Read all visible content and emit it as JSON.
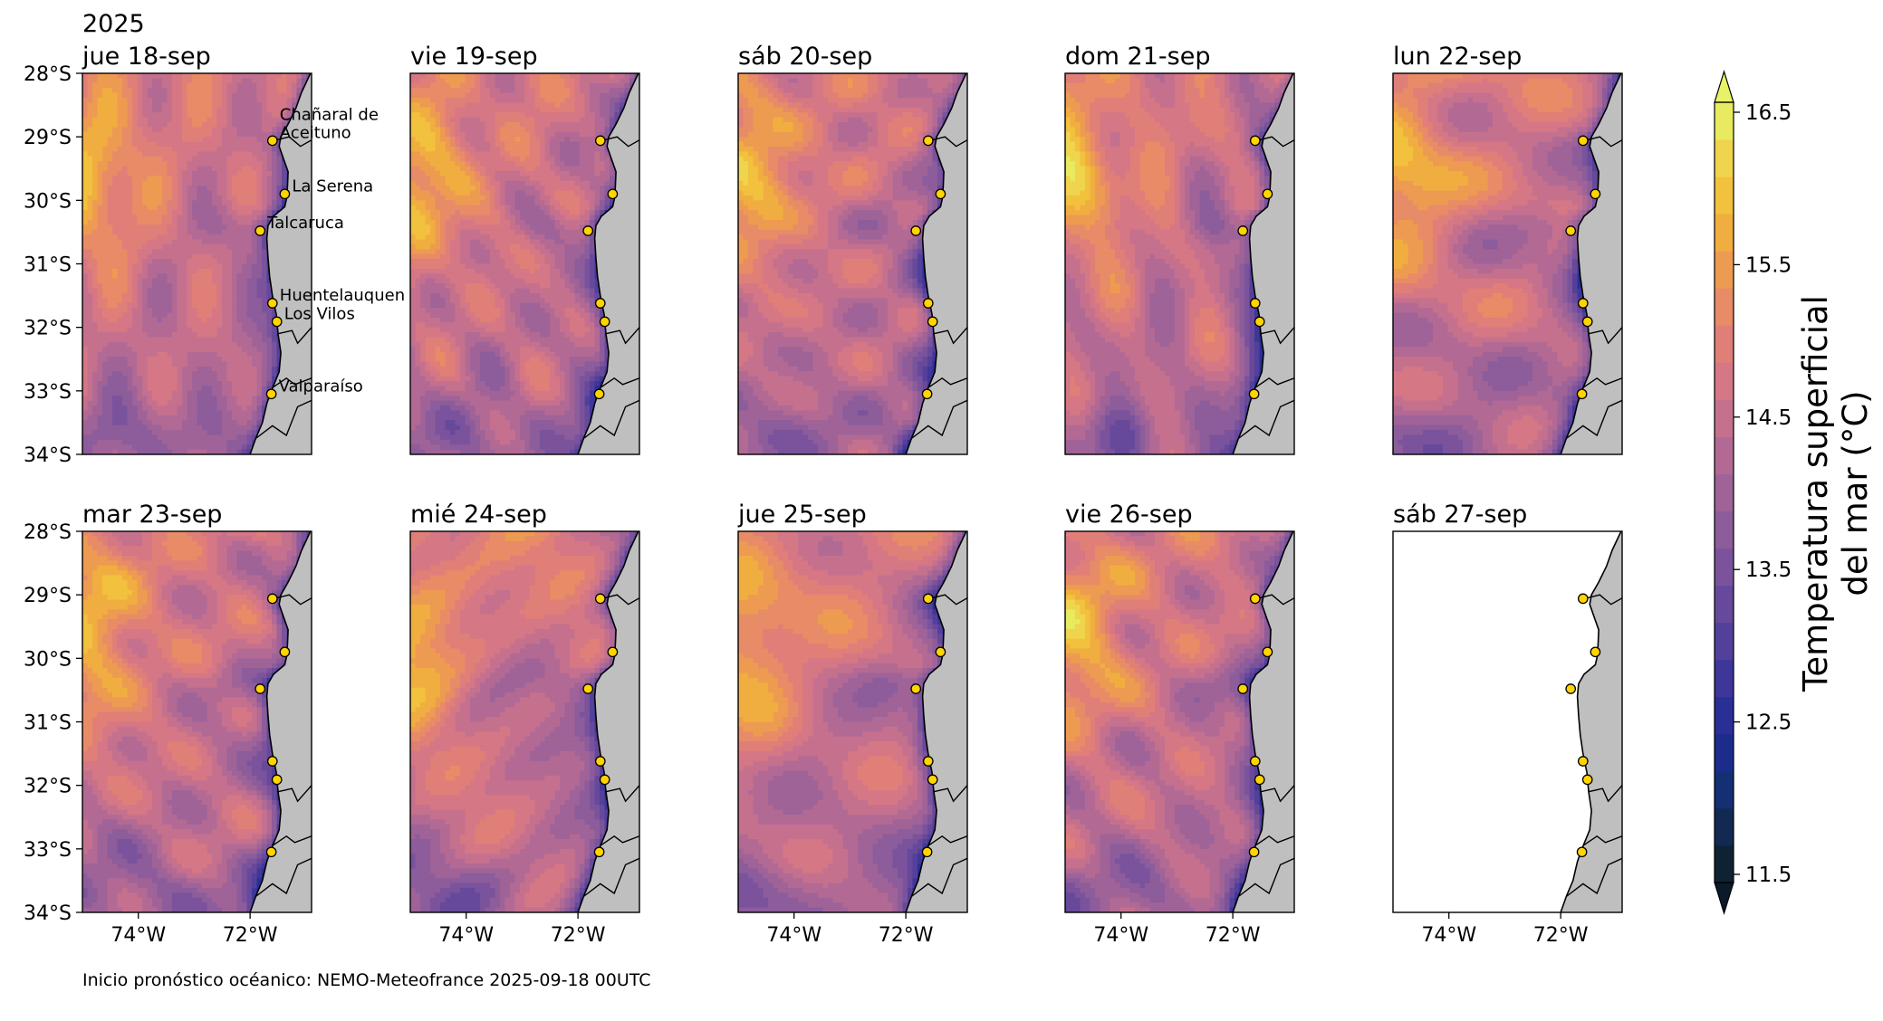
{
  "chart_data": {
    "type": "heatmap",
    "year": "2025",
    "panels": [
      {
        "title": "jue 18-sep",
        "has_field": true,
        "seed": 11
      },
      {
        "title": "vie 19-sep",
        "has_field": true,
        "seed": 23
      },
      {
        "title": "sáb 20-sep",
        "has_field": true,
        "seed": 37
      },
      {
        "title": "dom 21-sep",
        "has_field": true,
        "seed": 41
      },
      {
        "title": "lun 22-sep",
        "has_field": true,
        "seed": 53
      },
      {
        "title": "mar 23-sep",
        "has_field": true,
        "seed": 67
      },
      {
        "title": "mié 24-sep",
        "has_field": true,
        "seed": 71
      },
      {
        "title": "jue 25-sep",
        "has_field": true,
        "seed": 83
      },
      {
        "title": "vie 26-sep",
        "has_field": true,
        "seed": 97
      },
      {
        "title": "sáb 27-sep",
        "has_field": false,
        "seed": 0
      }
    ],
    "lon_range": [
      -75,
      -70.9
    ],
    "lat_range": [
      -34,
      -28
    ],
    "x_ticks": [
      -74,
      -72
    ],
    "x_tick_labels": [
      "74°W",
      "72°W"
    ],
    "y_ticks": [
      -28,
      -29,
      -30,
      -31,
      -32,
      -33,
      -34
    ],
    "y_tick_labels": [
      "28°S",
      "29°S",
      "30°S",
      "31°S",
      "32°S",
      "33°S",
      "34°S"
    ],
    "locations": [
      {
        "name": "Chañaral de Aceituno",
        "label_lines": [
          "Chañaral de",
          "Aceituno"
        ],
        "lon": -71.6,
        "lat": -29.06
      },
      {
        "name": "La Serena",
        "label_lines": [
          "La Serena"
        ],
        "lon": -71.38,
        "lat": -29.9
      },
      {
        "name": "Talcaruca",
        "label_lines": [
          "Talcaruca"
        ],
        "lon": -71.82,
        "lat": -30.48
      },
      {
        "name": "Huentelauquen",
        "label_lines": [
          "Huentelauquen"
        ],
        "lon": -71.6,
        "lat": -31.62
      },
      {
        "name": "Los Vilos",
        "label_lines": [
          "Los Vilos"
        ],
        "lon": -71.52,
        "lat": -31.91
      },
      {
        "name": "Valparaíso",
        "label_lines": [
          "Valparaíso"
        ],
        "lon": -71.62,
        "lat": -33.05
      }
    ],
    "colorbar": {
      "label_lines": [
        "Temperatura superficial",
        "del mar (°C)"
      ],
      "min": 11.5,
      "max": 16.5,
      "tick_values": [
        11.5,
        12.5,
        13.5,
        14.5,
        15.5,
        16.5
      ],
      "tick_labels": [
        "11.5",
        "12.5",
        "13.5",
        "14.5",
        "15.5",
        "16.5"
      ],
      "levels": [
        11.5,
        11.75,
        12.0,
        12.25,
        12.5,
        12.75,
        13.0,
        13.25,
        13.5,
        13.75,
        14.0,
        14.25,
        14.5,
        14.75,
        15.0,
        15.25,
        15.5,
        15.75,
        16.0,
        16.25,
        16.5
      ],
      "colors": [
        "#0f2234",
        "#122a52",
        "#142f73",
        "#1b2c8d",
        "#2a2f96",
        "#3f369a",
        "#53409b",
        "#67499b",
        "#7a539c",
        "#8c5c9b",
        "#9f6398",
        "#b26a94",
        "#c5718e",
        "#d57785",
        "#e07f78",
        "#e88b67",
        "#ee9b52",
        "#f1ae40",
        "#f2c13d",
        "#efd44d",
        "#e8ea60"
      ],
      "over_color": "#e8f266",
      "under_color": "#0a1a28"
    },
    "footer": "Inicio pronóstico océanico: NEMO-Meteofrance 2025-09-18 00UTC"
  }
}
